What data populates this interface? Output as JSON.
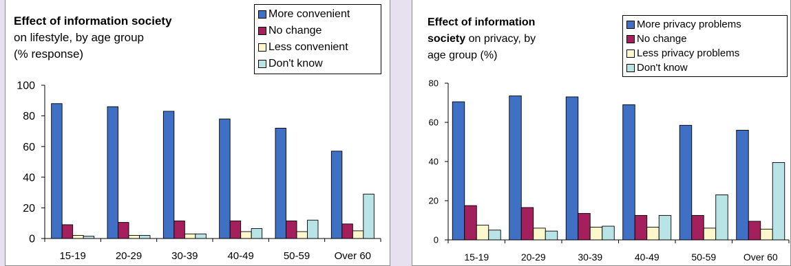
{
  "colors": {
    "more": "#3f70c4",
    "no_change": "#a3205c",
    "less": "#fcf8cc",
    "dont_know": "#b9e4e6",
    "background": "#e7e1ef"
  },
  "chart_data": [
    {
      "type": "bar",
      "title_bold": "Effect of information society",
      "title_rest": "on lifestyle, by age group (% response)",
      "title_lines": [
        "Effect of information society",
        "on lifestyle, by age group",
        "(% response)"
      ],
      "categories": [
        "15-19",
        "20-29",
        "30-39",
        "40-49",
        "50-59",
        "Over 60"
      ],
      "ylim": [
        0,
        100
      ],
      "yticks": [
        0,
        20,
        40,
        60,
        80,
        100
      ],
      "grid": false,
      "legend_position": "top-right",
      "series": [
        {
          "name": "More convenient",
          "values": [
            88,
            86,
            83,
            78,
            72,
            57
          ]
        },
        {
          "name": "No change",
          "values": [
            9,
            10.5,
            11.5,
            11.5,
            11.5,
            9.5
          ]
        },
        {
          "name": "Less convenient",
          "values": [
            2,
            2,
            3,
            4.5,
            4.5,
            5
          ]
        },
        {
          "name": "Don't know",
          "values": [
            1.5,
            2,
            3,
            6.5,
            12,
            29
          ]
        }
      ]
    },
    {
      "type": "bar",
      "title_bold": "Effect of information society",
      "title_rest": "on privacy, by age group (%)",
      "title_lines": [
        "Effect of information",
        "society on privacy, by",
        "age group (%)"
      ],
      "categories": [
        "15-19",
        "20-29",
        "30-39",
        "40-49",
        "50-59",
        "Over 60"
      ],
      "ylim": [
        0,
        80
      ],
      "yticks": [
        0,
        20,
        40,
        60,
        80
      ],
      "grid": false,
      "legend_position": "top-right",
      "series": [
        {
          "name": "More privacy problems",
          "values": [
            70.5,
            73.5,
            73,
            69,
            58.5,
            56
          ]
        },
        {
          "name": "No change",
          "values": [
            17.5,
            16.5,
            13.5,
            12.5,
            12.5,
            9.5
          ]
        },
        {
          "name": "Less privacy problems",
          "values": [
            7.5,
            6,
            6.5,
            6.5,
            6,
            5.5
          ]
        },
        {
          "name": "Don't know",
          "values": [
            5,
            4.5,
            7,
            12.5,
            23,
            39.5
          ]
        }
      ]
    }
  ]
}
